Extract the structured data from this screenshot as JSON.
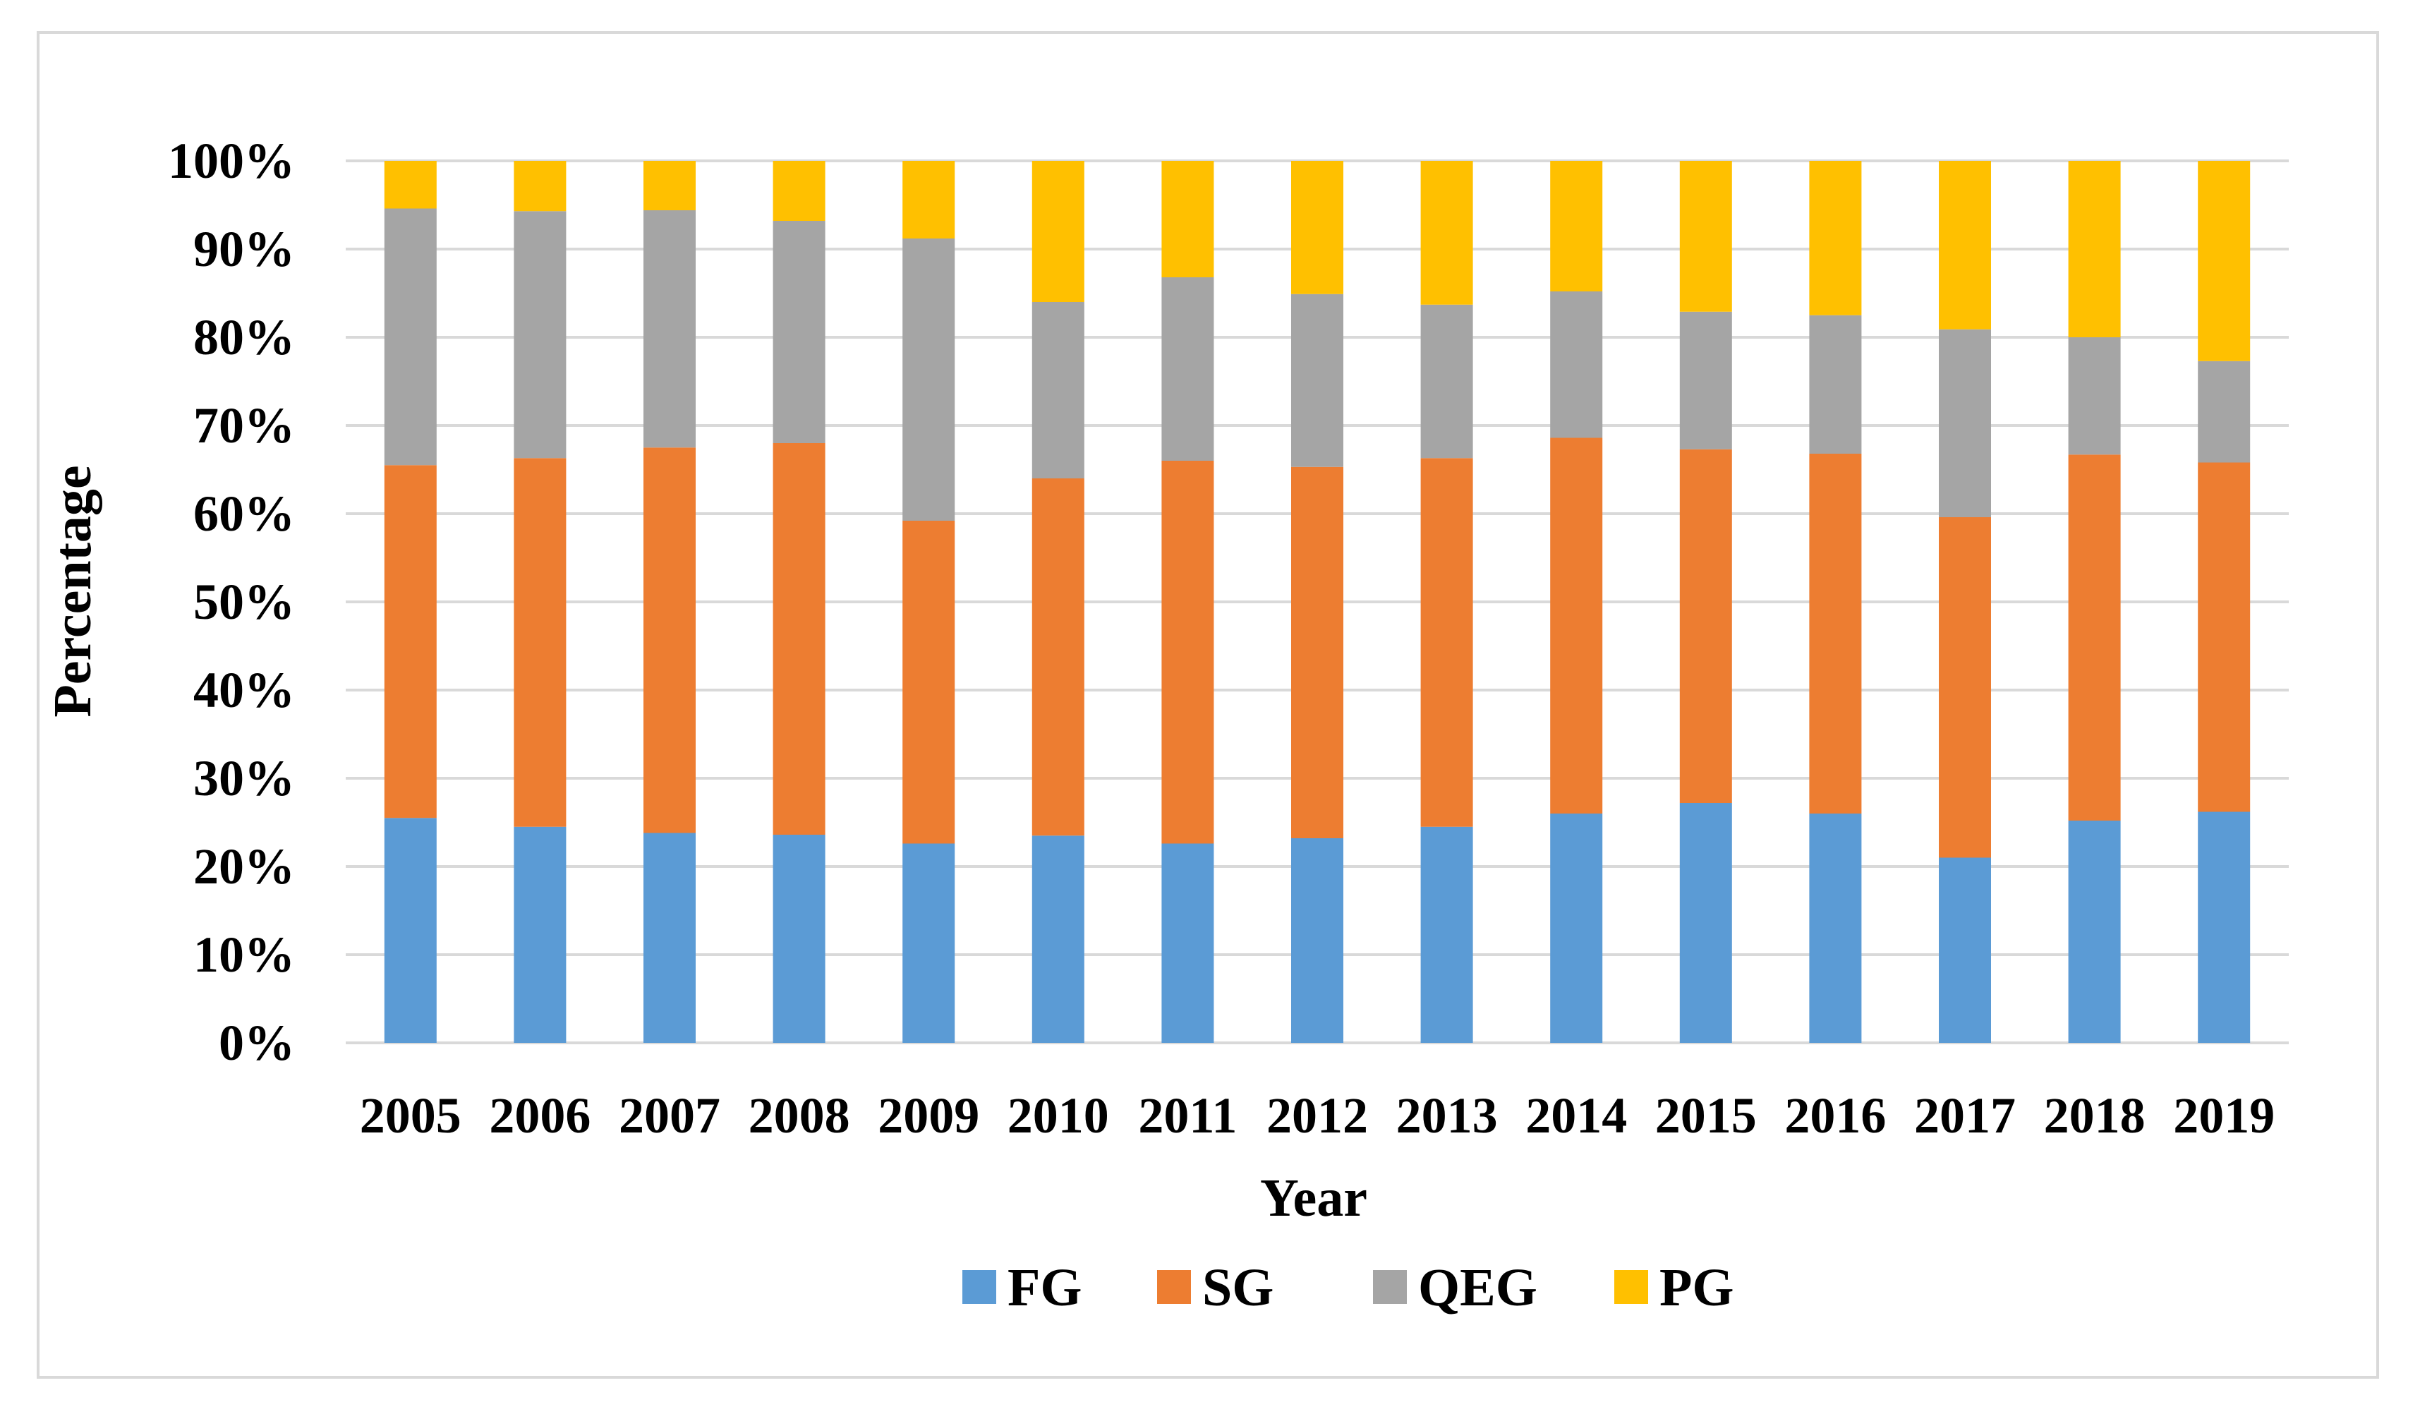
{
  "chart_data": {
    "type": "bar",
    "stacked": true,
    "title": "",
    "xlabel": "Year",
    "ylabel": "Percentage",
    "ylim": [
      0,
      100
    ],
    "yticks": [
      "0%",
      "10%",
      "20%",
      "30%",
      "40%",
      "50%",
      "60%",
      "70%",
      "80%",
      "90%",
      "100%"
    ],
    "categories": [
      "2005",
      "2006",
      "2007",
      "2008",
      "2009",
      "2010",
      "2011",
      "2012",
      "2013",
      "2014",
      "2015",
      "2016",
      "2017",
      "2018",
      "2019"
    ],
    "series": [
      {
        "name": "FG",
        "color": "#5b9bd5",
        "values": [
          25.5,
          24.5,
          23.8,
          23.6,
          22.6,
          23.5,
          22.6,
          23.2,
          24.5,
          26.0,
          27.2,
          26.0,
          21.0,
          25.2,
          26.2
        ]
      },
      {
        "name": "SG",
        "color": "#ed7d31",
        "values": [
          40.0,
          41.8,
          43.7,
          44.4,
          36.6,
          40.5,
          43.4,
          42.1,
          41.8,
          42.6,
          40.1,
          40.8,
          38.6,
          41.5,
          39.6
        ]
      },
      {
        "name": "QEG",
        "color": "#a5a5a5",
        "values": [
          29.1,
          28.0,
          26.9,
          25.2,
          32.0,
          20.0,
          20.8,
          19.6,
          17.4,
          16.6,
          15.6,
          15.7,
          21.3,
          13.3,
          11.5
        ]
      },
      {
        "name": "PG",
        "color": "#ffc000",
        "values": [
          5.4,
          5.7,
          5.6,
          6.8,
          8.8,
          16.0,
          13.2,
          15.1,
          16.3,
          14.8,
          17.1,
          17.5,
          19.1,
          20.0,
          22.7
        ]
      }
    ],
    "legend_position": "bottom",
    "grid": true
  }
}
